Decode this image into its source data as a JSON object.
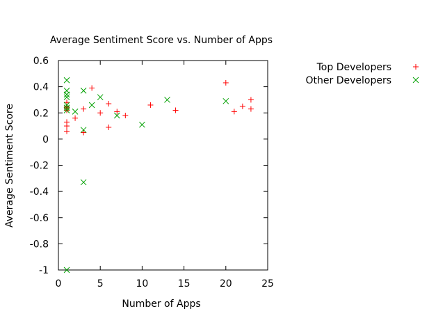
{
  "chart_data": {
    "type": "scatter",
    "title": "Average Sentiment Score vs. Number of Apps",
    "xlabel": "Number of Apps",
    "ylabel": "Average Sentiment Score",
    "xlim": [
      0,
      25
    ],
    "ylim": [
      -1,
      0.6
    ],
    "xticks": [
      "0",
      "5",
      "10",
      "15",
      "20",
      "25"
    ],
    "yticks": [
      "-1",
      "-0.8",
      "-0.6",
      "-0.4",
      "-0.2",
      "0",
      "0.2",
      "0.4",
      "0.6"
    ],
    "grid": false,
    "legend_position": "outside-top-right",
    "series": [
      {
        "name": "Top Developers",
        "marker": "+",
        "color": "#ff0000",
        "points": [
          [
            1,
            0.28
          ],
          [
            1,
            0.25
          ],
          [
            1,
            0.24
          ],
          [
            1,
            0.23
          ],
          [
            1,
            0.22
          ],
          [
            1,
            0.13
          ],
          [
            1,
            0.1
          ],
          [
            1,
            0.06
          ],
          [
            2,
            0.16
          ],
          [
            3,
            0.23
          ],
          [
            3,
            0.05
          ],
          [
            4,
            0.39
          ],
          [
            5,
            0.2
          ],
          [
            6,
            0.27
          ],
          [
            6,
            0.09
          ],
          [
            7,
            0.21
          ],
          [
            8,
            0.18
          ],
          [
            11,
            0.26
          ],
          [
            14,
            0.22
          ],
          [
            20,
            0.43
          ],
          [
            21,
            0.21
          ],
          [
            22,
            0.25
          ],
          [
            23,
            0.3
          ],
          [
            23,
            0.23
          ]
        ]
      },
      {
        "name": "Other Developers",
        "marker": "x",
        "color": "#00a000",
        "points": [
          [
            1,
            0.45
          ],
          [
            1,
            0.37
          ],
          [
            1,
            0.34
          ],
          [
            1,
            0.32
          ],
          [
            1,
            0.26
          ],
          [
            1,
            0.24
          ],
          [
            1,
            0.22
          ],
          [
            1,
            -1.0
          ],
          [
            2,
            0.21
          ],
          [
            3,
            0.37
          ],
          [
            3,
            0.07
          ],
          [
            3,
            -0.33
          ],
          [
            4,
            0.26
          ],
          [
            5,
            0.32
          ],
          [
            7,
            0.18
          ],
          [
            10,
            0.11
          ],
          [
            13,
            0.3
          ],
          [
            20,
            0.29
          ]
        ]
      }
    ]
  }
}
